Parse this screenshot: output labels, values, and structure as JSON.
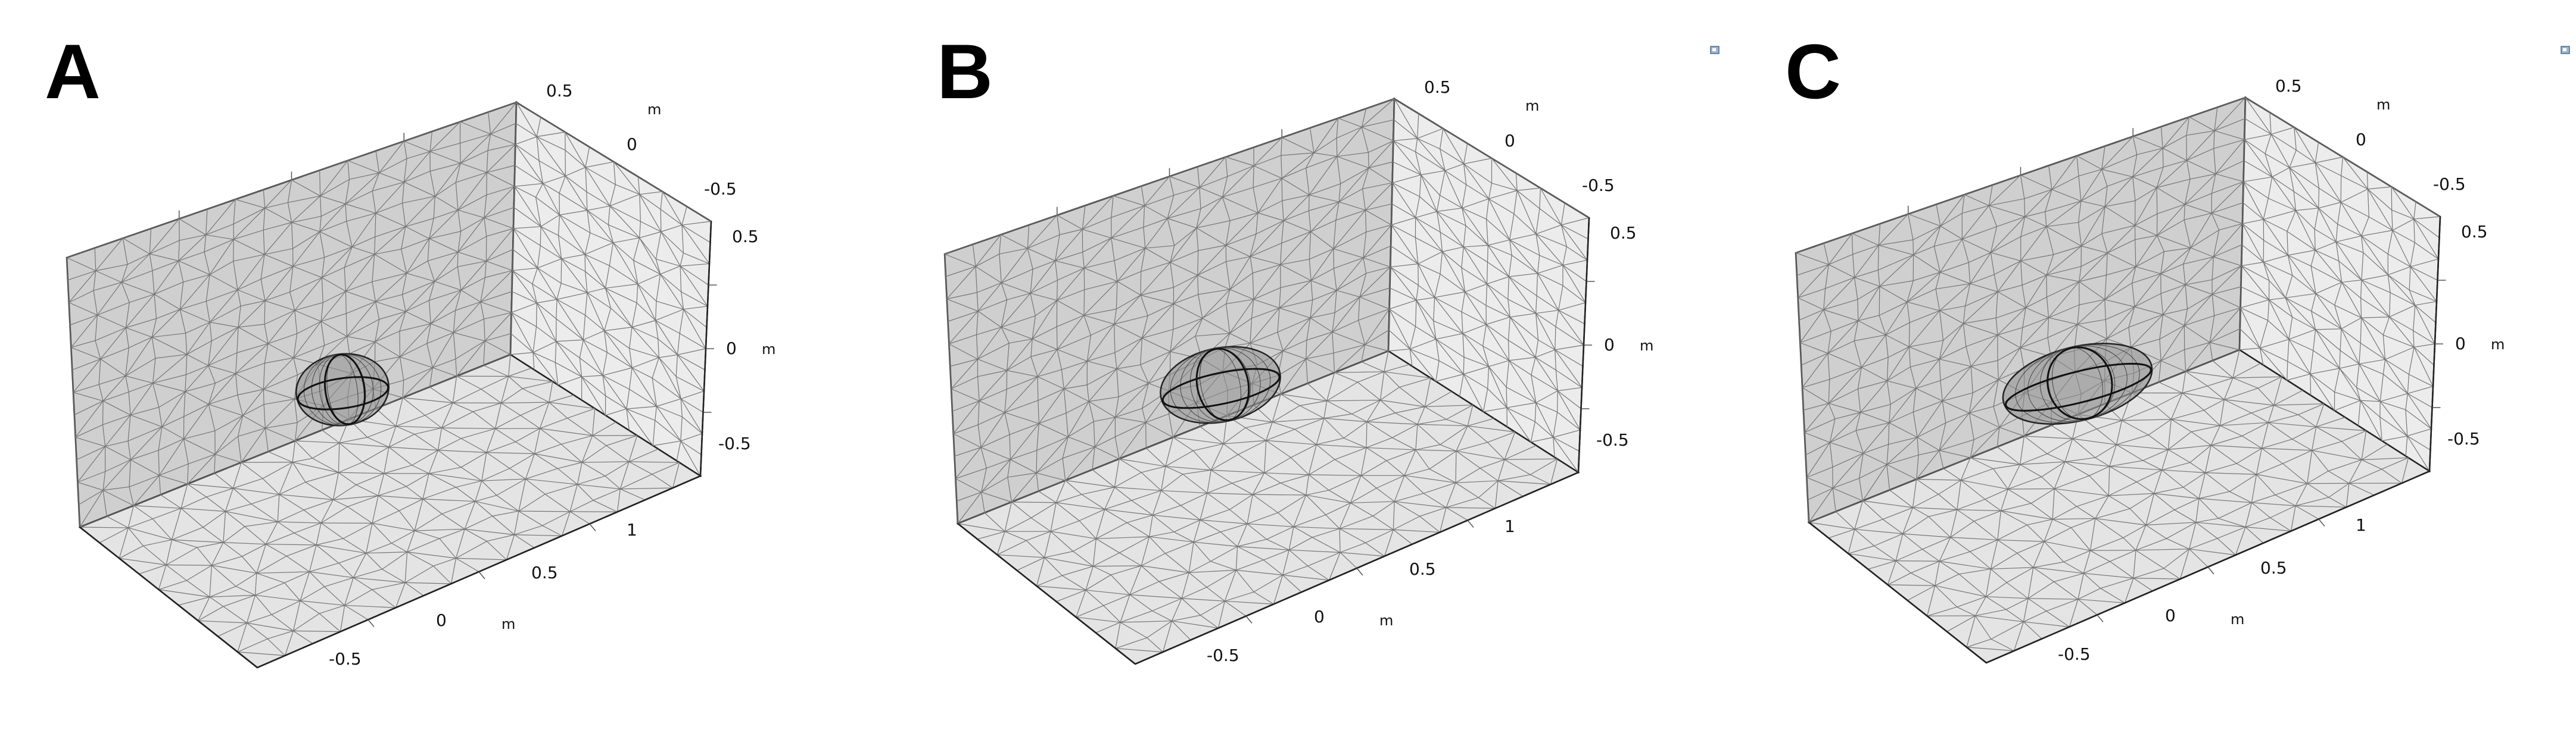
{
  "panels": [
    {
      "label": "A",
      "z_ticks": [
        "0.5",
        "0",
        "-0.5"
      ],
      "y_ticks": [
        "-0.5",
        "0",
        "0.5"
      ],
      "x_ticks": [
        "-0.5",
        "0",
        "0.5",
        "1"
      ],
      "unit_x": "m",
      "unit_y": "m",
      "unit_z": "m",
      "has_toolbar_icon": false
    },
    {
      "label": "B",
      "z_ticks": [
        "0.5",
        "0",
        "-0.5"
      ],
      "y_ticks": [
        "-0.5",
        "0",
        "0.5"
      ],
      "x_ticks": [
        "-0.5",
        "0",
        "0.5",
        "1"
      ],
      "unit_x": "m",
      "unit_y": "m",
      "unit_z": "m",
      "has_toolbar_icon": true
    },
    {
      "label": "C",
      "z_ticks": [
        "0.5",
        "0",
        "-0.5"
      ],
      "y_ticks": [
        "-0.5",
        "0",
        "0.5"
      ],
      "x_ticks": [
        "-0.5",
        "0",
        "0.5",
        "1"
      ],
      "unit_x": "m",
      "unit_y": "m",
      "unit_z": "m",
      "has_toolbar_icon": true
    }
  ],
  "colors": {
    "back_wall": "#cfcfcf",
    "side_wall": "#ececec",
    "floor": "#e4e4e4",
    "mesh": "#777777",
    "edge": "#222222",
    "ellipsoid": "#8f8f8f"
  }
}
